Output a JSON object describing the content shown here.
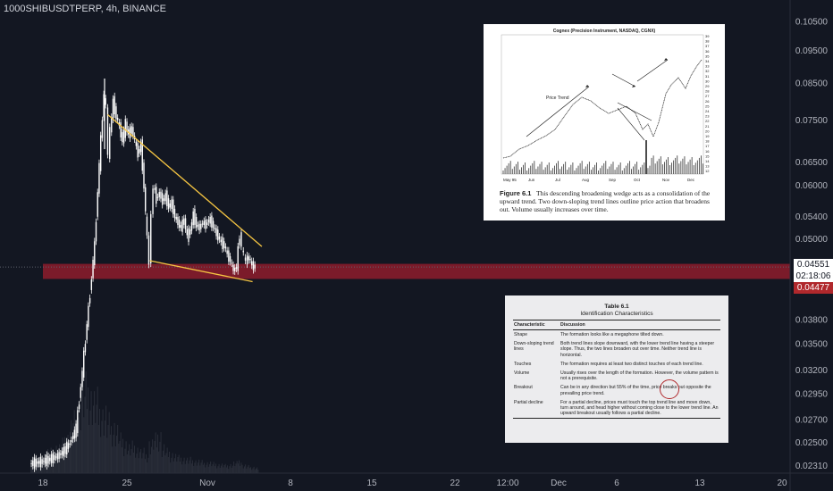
{
  "chart_data": {
    "type": "candlestick",
    "symbol": "1000SHIBUSDTPERP",
    "timeframe": "4h",
    "exchange": "BINANCE",
    "y_scale": "log",
    "ylim": [
      0.0231,
      0.108
    ],
    "y_ticks": [
      "0.10500",
      "0.09500",
      "0.08500",
      "0.07500",
      "0.06500",
      "0.06000",
      "0.05400",
      "0.05000",
      "0.04551",
      "0.03800",
      "0.03500",
      "0.03200",
      "0.02950",
      "0.02700",
      "0.02500",
      "0.02310"
    ],
    "x_ticks": [
      "18",
      "25",
      "Nov",
      "8",
      "15",
      "22",
      "12:00",
      "Dec",
      "6",
      "13",
      "20"
    ],
    "close_path": [
      [
        "Oct 16 00:00",
        0.0233
      ],
      [
        "Oct 17 12:00",
        0.0234
      ],
      [
        "Oct 19 00:00",
        0.0236
      ],
      [
        "Oct 20 12:00",
        0.0239
      ],
      [
        "Oct 21 12:00",
        0.0243
      ],
      [
        "Oct 22 12:00",
        0.025
      ],
      [
        "Oct 23 12:00",
        0.0262
      ],
      [
        "Oct 24 00:00",
        0.029
      ],
      [
        "Oct 24 12:00",
        0.0318
      ],
      [
        "Oct 25 00:00",
        0.0355
      ],
      [
        "Oct 25 12:00",
        0.0395
      ],
      [
        "Oct 26 00:00",
        0.044
      ],
      [
        "Oct 26 12:00",
        0.049
      ],
      [
        "Oct 27 00:00",
        0.059
      ],
      [
        "Oct 27 12:00",
        0.07
      ],
      [
        "Oct 28 00:00",
        0.082
      ],
      [
        "Oct 28 08:00",
        0.078
      ],
      [
        "Oct 28 16:00",
        0.067
      ],
      [
        "Oct 29 00:00",
        0.072
      ],
      [
        "Oct 29 12:00",
        0.08
      ],
      [
        "Oct 30 00:00",
        0.076
      ],
      [
        "Oct 30 12:00",
        0.0735
      ],
      [
        "Oct 31 00:00",
        0.07
      ],
      [
        "Oct 31 12:00",
        0.074
      ],
      [
        "Nov 1 00:00",
        0.0715
      ],
      [
        "Nov 1 12:00",
        0.073
      ],
      [
        "Nov 2 00:00",
        0.07
      ],
      [
        "Nov 2 12:00",
        0.067
      ],
      [
        "Nov 3 00:00",
        0.069
      ],
      [
        "Nov 3 12:00",
        0.06
      ],
      [
        "Nov 4 00:00",
        0.05
      ],
      [
        "Nov 4 08:00",
        0.0465
      ],
      [
        "Nov 4 16:00",
        0.054
      ],
      [
        "Nov 5 00:00",
        0.06
      ],
      [
        "Nov 5 12:00",
        0.0575
      ],
      [
        "Nov 6 00:00",
        0.0585
      ],
      [
        "Nov 6 12:00",
        0.057
      ],
      [
        "Nov 7 00:00",
        0.058
      ],
      [
        "Nov 7 12:00",
        0.056
      ],
      [
        "Nov 8 00:00",
        0.0565
      ],
      [
        "Nov 8 12:00",
        0.054
      ],
      [
        "Nov 9 00:00",
        0.053
      ],
      [
        "Nov 9 12:00",
        0.052
      ],
      [
        "Nov 10 00:00",
        0.0535
      ],
      [
        "Nov 10 12:00",
        0.0505
      ],
      [
        "Nov 11 00:00",
        0.0515
      ],
      [
        "Nov 11 12:00",
        0.0545
      ],
      [
        "Nov 12 00:00",
        0.0525
      ],
      [
        "Nov 12 12:00",
        0.052
      ],
      [
        "Nov 13 00:00",
        0.053
      ],
      [
        "Nov 13 12:00",
        0.0525
      ],
      [
        "Nov 14 00:00",
        0.0535
      ],
      [
        "Nov 14 12:00",
        0.053
      ],
      [
        "Nov 15 00:00",
        0.0515
      ],
      [
        "Nov 15 12:00",
        0.0505
      ],
      [
        "Nov 16 00:00",
        0.0495
      ],
      [
        "Nov 16 12:00",
        0.049
      ],
      [
        "Nov 17 00:00",
        0.0475
      ],
      [
        "Nov 17 12:00",
        0.0465
      ],
      [
        "Nov 18 00:00",
        0.045
      ],
      [
        "Nov 18 12:00",
        0.0455
      ],
      [
        "Nov 19 00:00",
        0.051
      ],
      [
        "Nov 19 08:00",
        0.049
      ],
      [
        "Nov 19 16:00",
        0.047
      ],
      [
        "Nov 20 00:00",
        0.0465
      ],
      [
        "Nov 20 12:00",
        0.047
      ],
      [
        "Nov 21 00:00",
        0.0458
      ],
      [
        "Nov 21 12:00",
        0.0455
      ]
    ],
    "volume_relative": [
      0.18,
      0.2,
      0.17,
      0.22,
      0.25,
      0.24,
      0.3,
      0.35,
      0.42,
      0.55,
      0.62,
      0.8,
      0.95,
      1.0,
      0.9,
      0.85,
      0.75,
      0.7,
      0.6,
      0.55,
      0.5,
      0.4,
      0.35,
      0.3,
      0.32,
      0.28,
      0.25,
      0.22,
      0.35,
      0.4,
      0.45,
      0.3,
      0.25,
      0.22,
      0.2,
      0.18,
      0.17,
      0.16,
      0.15,
      0.14,
      0.13,
      0.12,
      0.12,
      0.11,
      0.1,
      0.1,
      0.09,
      0.1,
      0.12,
      0.15,
      0.09,
      0.08,
      0.07,
      0.06
    ],
    "trendlines": [
      {
        "role": "upper",
        "from": [
          "Oct 28 12:00",
          0.0765
        ],
        "to": [
          "Nov 22 12:00",
          0.0488
        ],
        "color": "#f5c542"
      },
      {
        "role": "lower",
        "from": [
          "Nov 4 08:00",
          0.0465
        ],
        "to": [
          "Nov 21 00:00",
          0.0433
        ],
        "color": "#f5c542"
      }
    ],
    "support_zone": {
      "low": 0.0437,
      "high": 0.046,
      "color": "#7b1b2a"
    },
    "last_price": "0.04551",
    "countdown": "02:18:06",
    "zone_label": "0.04477"
  },
  "figure_6_1": {
    "title": "Cognex (Precision Instrument, NASDAQ, CGNX)",
    "annotation": "Price Trend",
    "x_labels": [
      "May 95",
      "Jun",
      "Jul",
      "Aug",
      "Sep",
      "Oct",
      "Nov",
      "Dec"
    ],
    "y_labels": [
      "39",
      "38",
      "37",
      "36",
      "35",
      "34",
      "33",
      "32",
      "31",
      "30",
      "29",
      "28",
      "27",
      "26",
      "25",
      "24",
      "23",
      "22",
      "21",
      "20",
      "19",
      "18",
      "17",
      "16",
      "15",
      "14",
      "13",
      "12"
    ],
    "caption_label": "Figure 6.1",
    "caption": "This descending broadening wedge acts as a consolidation of the upward trend. Two down-sloping trend lines outline price action that broadens out. Volume usually increases over time."
  },
  "table_6_1": {
    "title": "Table 6.1",
    "subtitle": "Identification Characteristics",
    "headers": [
      "Characteristic",
      "Discussion"
    ],
    "rows": [
      [
        "Shape",
        "The formation looks like a megaphone tilted down."
      ],
      [
        "Down-sloping trend lines",
        "Both trend lines slope downward, with the lower trend line having a steeper slope. Thus, the two lines broaden out over time. Neither trend line is horizontal."
      ],
      [
        "Touches",
        "The formation requires at least two distinct touches of each trend line."
      ],
      [
        "Volume",
        "Usually rises over the length of the formation. However, the volume pattern is not a prerequisite."
      ],
      [
        "Breakout",
        "Can be in any direction but 55% of the time, price breaks out opposite the prevailing price trend."
      ],
      [
        "Partial decline",
        "For a partial decline, prices must touch the top trend line and move down, turn around, and head higher without coming close to the lower trend line. An upward breakout usually follows a partial decline."
      ]
    ],
    "highlight_color": "#b0282c"
  },
  "colors": {
    "background": "#131722",
    "candle": "#ffffff",
    "trendline": "#f5c542",
    "volume": "#2a2e39",
    "zone": "#7b1b2a",
    "last_price_bg": "#ffffff",
    "zone_label_bg": "#b0282c"
  }
}
